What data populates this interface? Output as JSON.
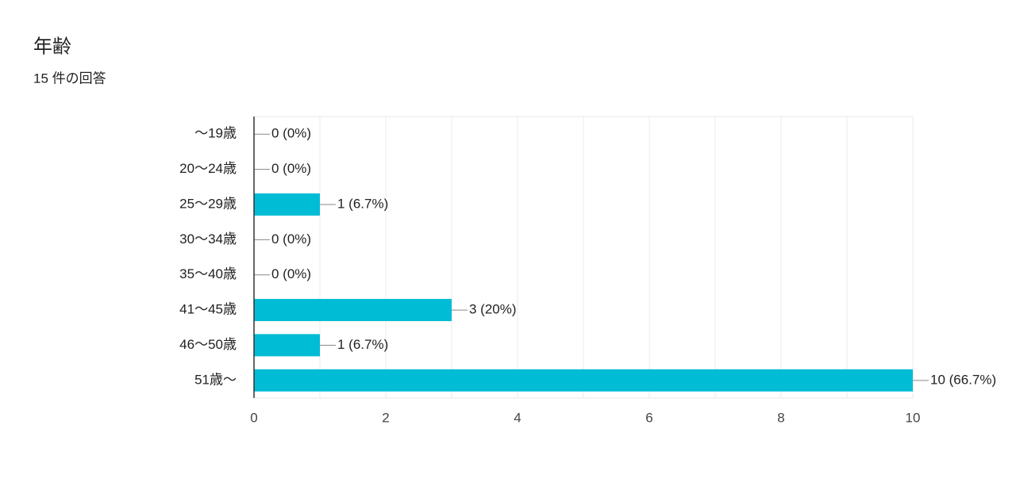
{
  "chart_data": {
    "type": "bar",
    "orientation": "horizontal",
    "title": "年齢",
    "subtitle": "15 件の回答",
    "categories": [
      "〜19歳",
      "20〜24歳",
      "25〜29歳",
      "30〜34歳",
      "35〜40歳",
      "41〜45歳",
      "46〜50歳",
      "51歳〜"
    ],
    "values": [
      0,
      0,
      1,
      0,
      0,
      3,
      1,
      10
    ],
    "value_labels": [
      "0 (0%)",
      "0 (0%)",
      "1 (6.7%)",
      "0 (0%)",
      "0 (0%)",
      "3 (20%)",
      "1 (6.7%)",
      "10 (66.7%)"
    ],
    "color": "#00bcd4",
    "xlim": [
      0,
      10
    ],
    "xticks": [
      0,
      2,
      4,
      6,
      8,
      10
    ],
    "minor_xticks": [
      1,
      3,
      5,
      7,
      9
    ],
    "grid": true
  }
}
